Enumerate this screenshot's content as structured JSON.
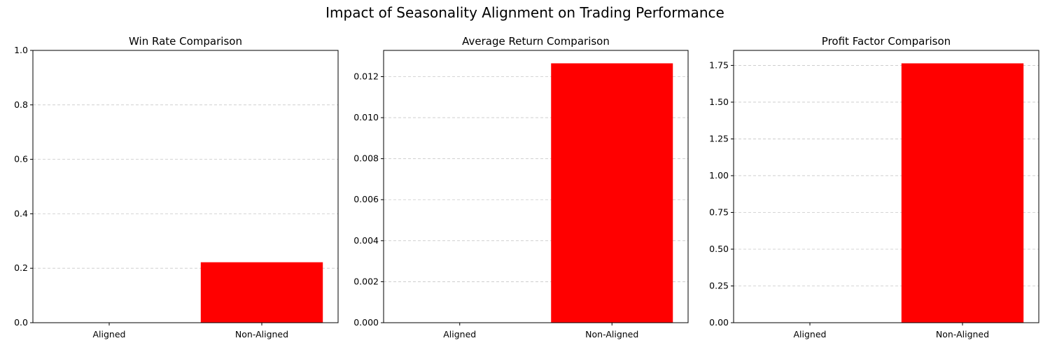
{
  "figure": {
    "suptitle": "Impact of Seasonality Alignment on Trading Performance"
  },
  "colors": {
    "bar": "#ff0000",
    "grid": "#b0b0b0",
    "axis": "#000000",
    "text": "#000000"
  },
  "chart_data": [
    {
      "type": "bar",
      "title": "Win Rate Comparison",
      "xlabel": "",
      "ylabel": "",
      "categories": [
        "Aligned",
        "Non-Aligned"
      ],
      "values": [
        0,
        0.222
      ],
      "ylim": [
        0,
        1.0
      ],
      "yticks": [
        "0.0",
        "0.2",
        "0.4",
        "0.6",
        "0.8",
        "1.0"
      ],
      "grid": "y-dashed",
      "legend": "none"
    },
    {
      "type": "bar",
      "title": "Average Return Comparison",
      "xlabel": "",
      "ylabel": "",
      "categories": [
        "Aligned",
        "Non-Aligned"
      ],
      "values": [
        0,
        0.01265
      ],
      "ylim": [
        0,
        0.01328
      ],
      "yticks": [
        "0.000",
        "0.002",
        "0.004",
        "0.006",
        "0.008",
        "0.010",
        "0.012"
      ],
      "grid": "y-dashed",
      "legend": "none"
    },
    {
      "type": "bar",
      "title": "Profit Factor Comparison",
      "xlabel": "",
      "ylabel": "",
      "categories": [
        "Aligned",
        "Non-Aligned"
      ],
      "values": [
        0,
        1.764
      ],
      "ylim": [
        0,
        1.852
      ],
      "yticks": [
        "0.00",
        "0.25",
        "0.50",
        "0.75",
        "1.00",
        "1.25",
        "1.50",
        "1.75"
      ],
      "grid": "y-dashed",
      "legend": "none"
    }
  ]
}
